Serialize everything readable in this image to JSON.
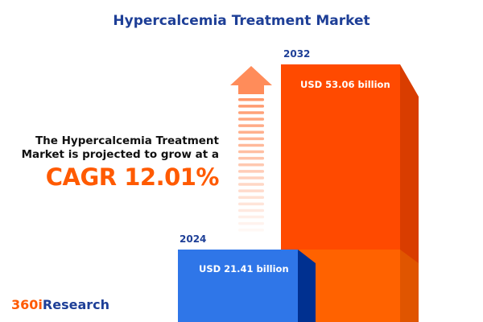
{
  "title": "Hypercalcemia Treatment Market",
  "description_line1": "The Hypercalcemia Treatment",
  "description_line2": "Market is projected to grow at a",
  "cagr_text": "CAGR 12.01%",
  "logo": {
    "part1": "360i",
    "part2": "Research"
  },
  "colors": {
    "title": "#1e3f97",
    "accent": "#ff5a00",
    "bar_2024": "#2f76e8",
    "bar_2032": "#ff4a00"
  },
  "icons": {
    "growth": "up-arrow-icon"
  },
  "chart_data": {
    "type": "bar",
    "categories": [
      "2024",
      "2032"
    ],
    "values": [
      21.41,
      53.06
    ],
    "data_labels": [
      "USD 21.41 billion",
      "USD 53.06 billion"
    ],
    "unit": "USD billion",
    "cagr": 12.01
  }
}
